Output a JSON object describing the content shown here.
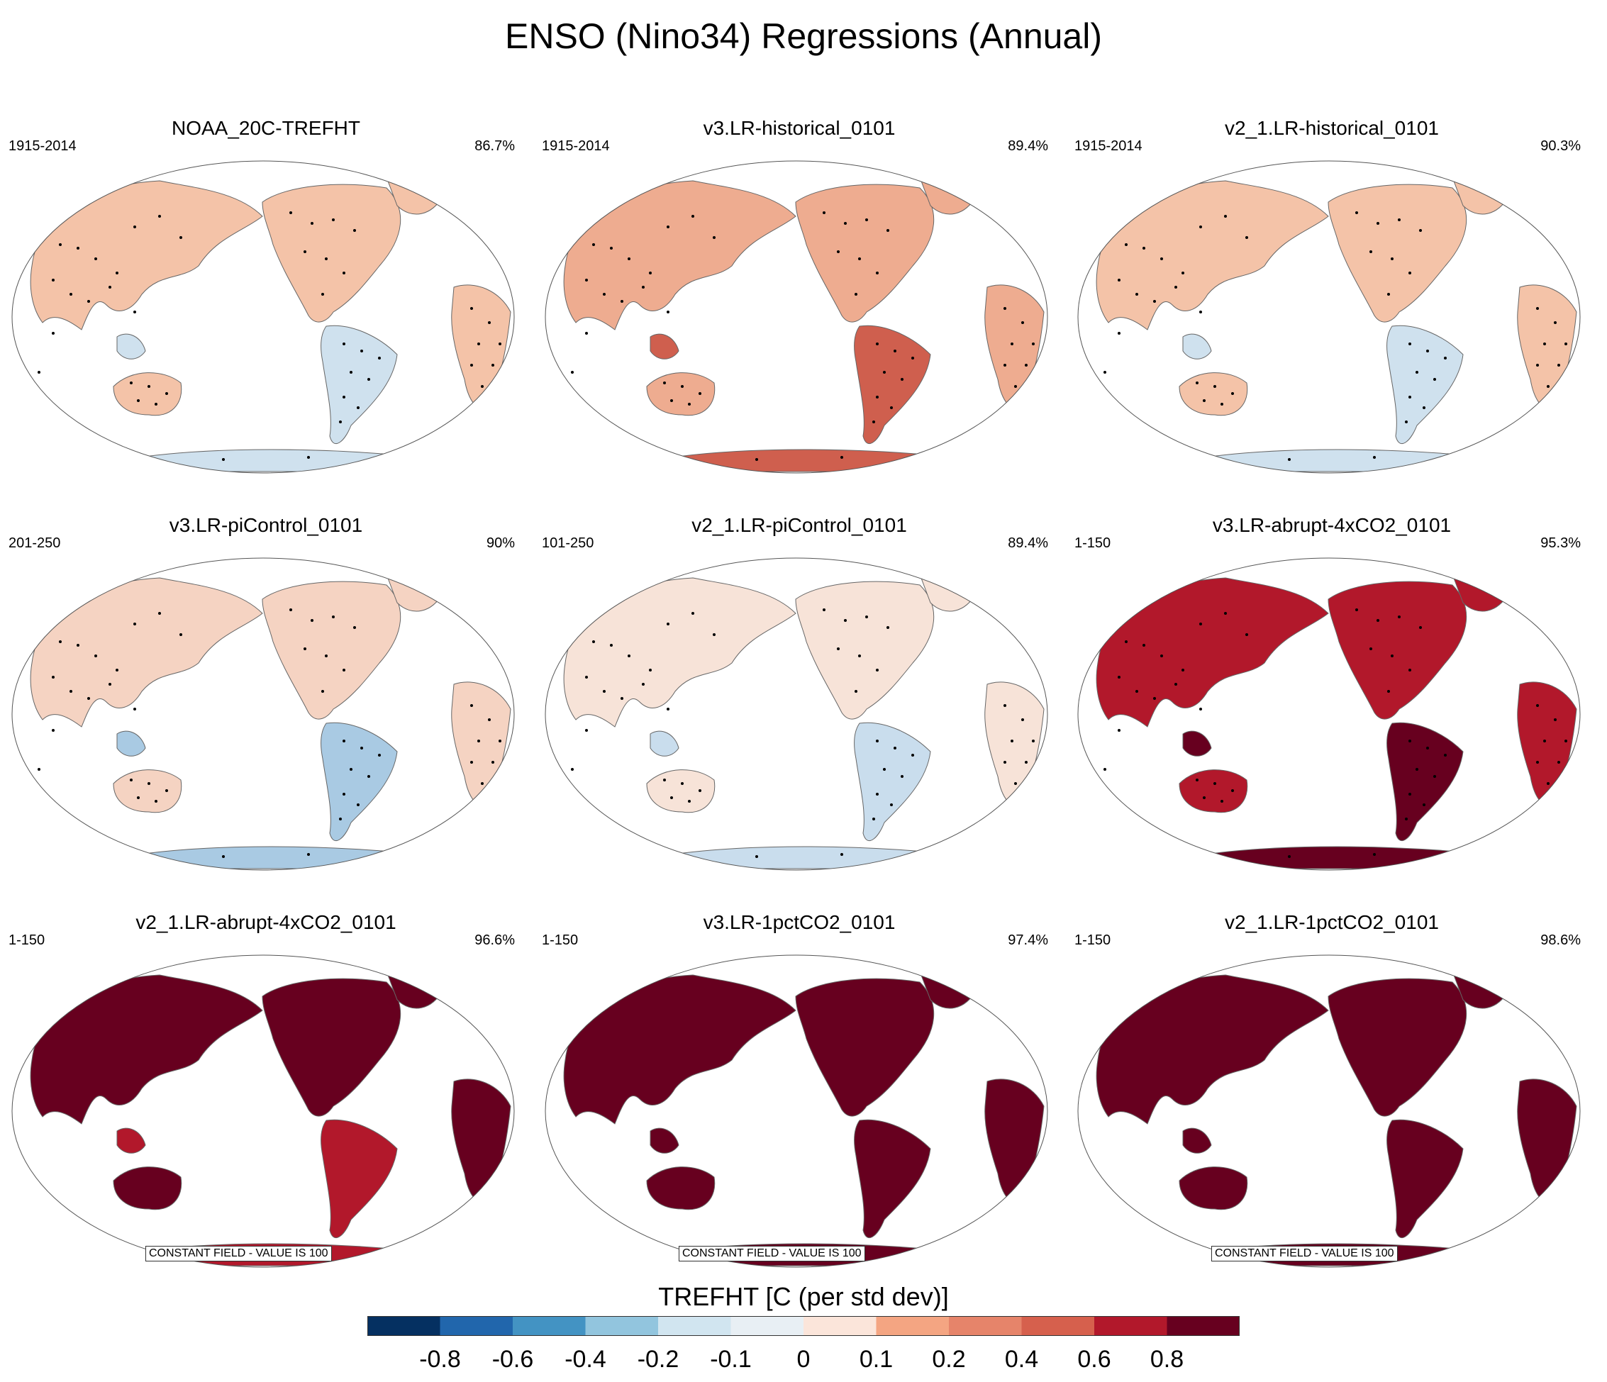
{
  "figure": {
    "title": "ENSO (Nino34) Regressions (Annual)"
  },
  "panels": [
    {
      "title": "NOAA_20C-TREFHT",
      "period": "1915-2014",
      "pct": "86.7%",
      "fill": "#f4c3a8",
      "alt": "#cfe1ee",
      "stipple": true
    },
    {
      "title": "v3.LR-historical_0101",
      "period": "1915-2014",
      "pct": "89.4%",
      "fill": "#eeac90",
      "alt": "#cf5f4e",
      "stipple": true
    },
    {
      "title": "v2_1.LR-historical_0101",
      "period": "1915-2014",
      "pct": "90.3%",
      "fill": "#f4c3a8",
      "alt": "#cfe1ee",
      "stipple": true
    },
    {
      "title": "v3.LR-piControl_0101",
      "period": "201-250",
      "pct": "90%",
      "fill": "#f5d3c2",
      "alt": "#a9cae3",
      "stipple": true
    },
    {
      "title": "v2_1.LR-piControl_0101",
      "period": "101-250",
      "pct": "89.4%",
      "fill": "#f7e3d8",
      "alt": "#c9dded",
      "stipple": true
    },
    {
      "title": "v3.LR-abrupt-4xCO2_0101",
      "period": "1-150",
      "pct": "95.3%",
      "fill": "#b2182b",
      "alt": "#67001f",
      "stipple": true
    },
    {
      "title": "v2_1.LR-abrupt-4xCO2_0101",
      "period": "1-150",
      "pct": "96.6%",
      "fill": "#67001f",
      "alt": "#b2182b",
      "stipple": false,
      "note": "CONSTANT FIELD - VALUE IS 100"
    },
    {
      "title": "v3.LR-1pctCO2_0101",
      "period": "1-150",
      "pct": "97.4%",
      "fill": "#67001f",
      "alt": "#67001f",
      "stipple": false,
      "note": "CONSTANT FIELD - VALUE IS 100"
    },
    {
      "title": "v2_1.LR-1pctCO2_0101",
      "period": "1-150",
      "pct": "98.6%",
      "fill": "#67001f",
      "alt": "#67001f",
      "stipple": false,
      "note": "CONSTANT FIELD - VALUE IS 100"
    }
  ],
  "colorbar": {
    "title": "TREFHT [C (per std dev)]",
    "colors": [
      "#053061",
      "#2166ac",
      "#4393c3",
      "#92c5de",
      "#d1e5f0",
      "#e8eff4",
      "#fbe5da",
      "#f4a582",
      "#e6846a",
      "#d6604d",
      "#b2182b",
      "#67001f"
    ],
    "ticks": [
      "-0.8",
      "-0.6",
      "-0.4",
      "-0.2",
      "-0.1",
      "0",
      "0.1",
      "0.2",
      "0.4",
      "0.6",
      "0.8"
    ]
  }
}
